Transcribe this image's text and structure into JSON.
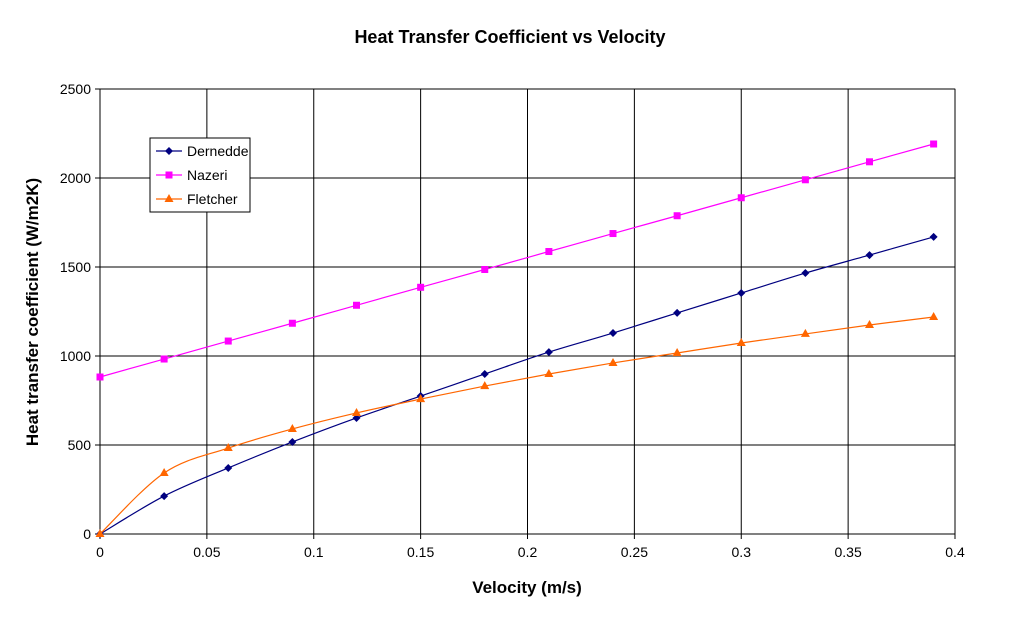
{
  "chart_data": {
    "type": "line",
    "title": "Heat Transfer Coefficient vs Velocity",
    "xlabel": "Velocity (m/s)",
    "ylabel": "Heat transfer coefficient (W/m2K)",
    "xlim": [
      0,
      0.4
    ],
    "ylim": [
      0,
      2500
    ],
    "xticks": [
      0,
      0.05,
      0.1,
      0.15,
      0.2,
      0.25,
      0.3,
      0.35,
      0.4
    ],
    "xtick_labels": [
      "0",
      "0.05",
      "0.1",
      "0.15",
      "0.2",
      "0.25",
      "0.3",
      "0.35",
      "0.4"
    ],
    "yticks": [
      0,
      500,
      1000,
      1500,
      2000,
      2500
    ],
    "ytick_labels": [
      "0",
      "500",
      "1000",
      "1500",
      "2000",
      "2500"
    ],
    "grid": true,
    "legend_position": "top-left",
    "x": [
      0,
      0.03,
      0.06,
      0.09,
      0.12,
      0.15,
      0.18,
      0.21,
      0.24,
      0.27,
      0.3,
      0.33,
      0.36,
      0.39
    ],
    "series": [
      {
        "name": "Dernedde",
        "color": "#000080",
        "marker": "diamond",
        "values": [
          0,
          213,
          371,
          517,
          652,
          775,
          899,
          1022,
          1129,
          1242,
          1354,
          1466,
          1567,
          1669
        ]
      },
      {
        "name": "Nazeri",
        "color": "#FF00FF",
        "marker": "square",
        "values": [
          882,
          983,
          1084,
          1184,
          1285,
          1386,
          1486,
          1587,
          1688,
          1788,
          1889,
          1990,
          2091,
          2191
        ]
      },
      {
        "name": "Fletcher",
        "color": "#FF6600",
        "marker": "triangle",
        "values": [
          0,
          343,
          483,
          590,
          680,
          758,
          831,
          899,
          961,
          1017,
          1073,
          1124,
          1174,
          1219
        ]
      }
    ]
  }
}
